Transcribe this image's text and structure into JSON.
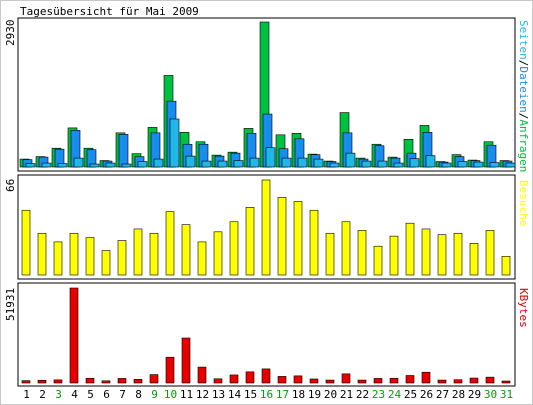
{
  "colors": {
    "background": "#ffffff",
    "panel_border": "#000000",
    "hits": "#00c040",
    "files": "#1a8cf0",
    "pages": "#20b8e8",
    "visits": "#ffff00",
    "kbytes": "#e80000",
    "weekend_label": "#00a000",
    "weekday_label": "#000000"
  },
  "chart_data": {
    "type": "bar",
    "title": "Tagesübersicht für Mai 2009",
    "x": [
      "1",
      "2",
      "3",
      "4",
      "5",
      "6",
      "7",
      "8",
      "9",
      "10",
      "11",
      "12",
      "13",
      "14",
      "15",
      "16",
      "17",
      "18",
      "19",
      "20",
      "21",
      "22",
      "23",
      "24",
      "25",
      "26",
      "27",
      "28",
      "29",
      "30",
      "31"
    ],
    "weekend_days": [
      "3",
      "9",
      "10",
      "16",
      "17",
      "23",
      "24",
      "30",
      "31"
    ],
    "panels": [
      {
        "id": "traffic",
        "max_label": "2930",
        "ymax": 2930,
        "legend": [
          {
            "text": "Seiten",
            "color": "#20b8e8"
          },
          {
            "text": "/",
            "color": "#000000"
          },
          {
            "text": "Dateien",
            "color": "#1a8cf0"
          },
          {
            "text": "/",
            "color": "#000000"
          },
          {
            "text": "Anfragen",
            "color": "#00c040"
          }
        ],
        "series": [
          {
            "name": "Anfragen",
            "color": "#00c040",
            "values": [
              160,
              210,
              380,
              790,
              380,
              130,
              690,
              270,
              800,
              1850,
              700,
              510,
              240,
              300,
              780,
              2930,
              650,
              680,
              260,
              120,
              1100,
              180,
              460,
              200,
              560,
              840,
              110,
              250,
              140,
              510,
              130
            ]
          },
          {
            "name": "Dateien",
            "color": "#1a8cf0",
            "values": [
              150,
              200,
              360,
              740,
              350,
              120,
              660,
              210,
              690,
              1330,
              460,
              460,
              220,
              280,
              680,
              1070,
              370,
              570,
              250,
              110,
              690,
              160,
              430,
              180,
              280,
              700,
              100,
              210,
              130,
              440,
              120
            ]
          },
          {
            "name": "Seiten",
            "color": "#20b8e8",
            "values": [
              70,
              80,
              70,
              180,
              60,
              80,
              60,
              110,
              160,
              970,
              220,
              120,
              120,
              130,
              180,
              390,
              180,
              180,
              160,
              80,
              280,
              120,
              120,
              80,
              170,
              230,
              80,
              110,
              100,
              90,
              80
            ]
          }
        ]
      },
      {
        "id": "visits",
        "max_label": "66",
        "ymax": 66,
        "legend": [
          {
            "text": "Besuche",
            "color": "#ffff00"
          }
        ],
        "series": [
          {
            "name": "Besuche",
            "color": "#ffff00",
            "values": [
              45,
              29,
              23,
              29,
              26,
              17,
              24,
              32,
              29,
              44,
              35,
              23,
              30,
              37,
              47,
              66,
              54,
              51,
              45,
              29,
              37,
              31,
              20,
              27,
              36,
              32,
              28,
              29,
              22,
              31,
              13
            ]
          }
        ]
      },
      {
        "id": "kbytes",
        "max_label": "51931",
        "ymax": 51931,
        "legend": [
          {
            "text": "KBytes",
            "color": "#e80000"
          }
        ],
        "series": [
          {
            "name": "KBytes",
            "color": "#e80000",
            "values": [
              1300,
              1500,
              1700,
              51931,
              2600,
              1200,
              2500,
              2000,
              4600,
              14100,
              24600,
              8700,
              2300,
              4400,
              6100,
              7700,
              3600,
              3900,
              2200,
              1600,
              5000,
              1600,
              2500,
              2600,
              4100,
              5900,
              1600,
              1800,
              2700,
              3200,
              900
            ]
          }
        ]
      }
    ]
  }
}
